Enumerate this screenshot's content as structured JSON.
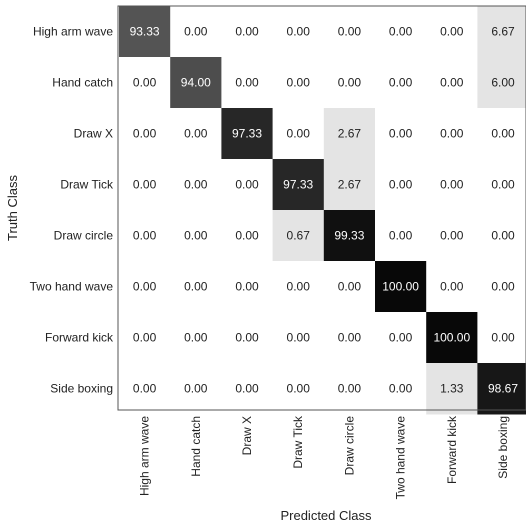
{
  "chart_data": {
    "type": "heatmap",
    "title": "",
    "xlabel": "Predicted Class",
    "ylabel": "Truth Class",
    "row_labels": [
      "High arm wave",
      "Hand catch",
      "Draw X",
      "Draw Tick",
      "Draw circle",
      "Two hand wave",
      "Forward kick",
      "Side boxing"
    ],
    "col_labels": [
      "High arm wave",
      "Hand catch",
      "Draw X",
      "Draw Tick",
      "Draw circle",
      "Two hand wave",
      "Forward kick",
      "Side boxing"
    ],
    "values": [
      [
        "93.33",
        "0.00",
        "0.00",
        "0.00",
        "0.00",
        "0.00",
        "0.00",
        "6.67"
      ],
      [
        "0.00",
        "94.00",
        "0.00",
        "0.00",
        "0.00",
        "0.00",
        "0.00",
        "6.00"
      ],
      [
        "0.00",
        "0.00",
        "97.33",
        "0.00",
        "2.67",
        "0.00",
        "0.00",
        "0.00"
      ],
      [
        "0.00",
        "0.00",
        "0.00",
        "97.33",
        "2.67",
        "0.00",
        "0.00",
        "0.00"
      ],
      [
        "0.00",
        "0.00",
        "0.00",
        "0.67",
        "99.33",
        "0.00",
        "0.00",
        "0.00"
      ],
      [
        "0.00",
        "0.00",
        "0.00",
        "0.00",
        "0.00",
        "100.00",
        "0.00",
        "0.00"
      ],
      [
        "0.00",
        "0.00",
        "0.00",
        "0.00",
        "0.00",
        "0.00",
        "100.00",
        "0.00"
      ],
      [
        "0.00",
        "0.00",
        "0.00",
        "0.00",
        "0.00",
        "0.00",
        "1.33",
        "98.67"
      ]
    ],
    "colormap": "grayscale",
    "grid": false,
    "legend": "none"
  },
  "colors": {
    "zero_cell": "#ffffff",
    "low_cell": "#e4e4e4",
    "frame": "#555555",
    "text_dark": "#222222",
    "text_light": "#ffffff"
  }
}
